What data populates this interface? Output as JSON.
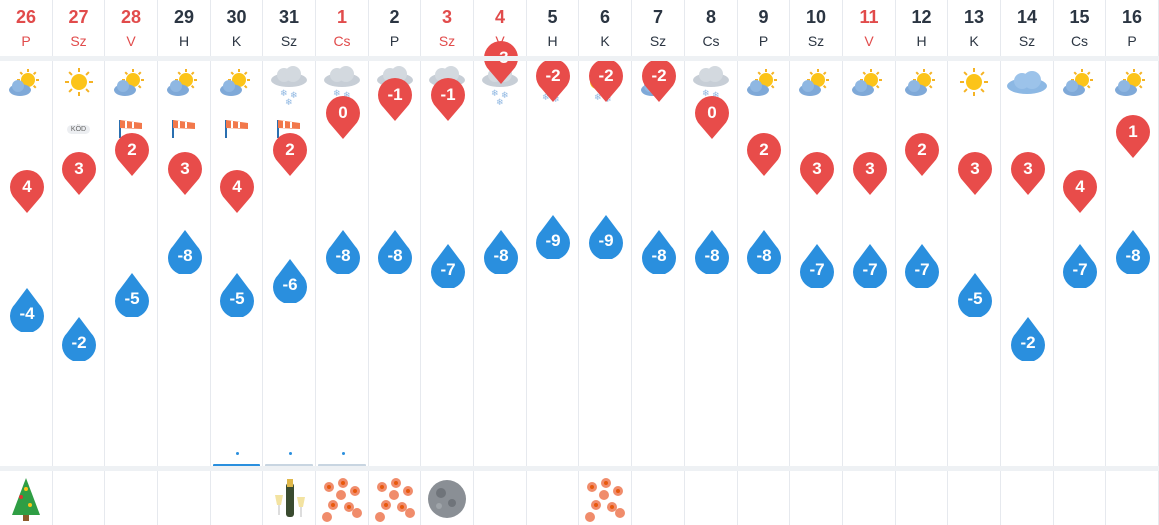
{
  "days": [
    {
      "num": "26",
      "name": "P",
      "red": true,
      "max": "4",
      "min": "-4",
      "icon": "sun-cloud",
      "extra": null,
      "precip": null,
      "event": "christmas-tree"
    },
    {
      "num": "27",
      "name": "Sz",
      "red": true,
      "max": "3",
      "min": "-2",
      "icon": "sun",
      "extra": "fog",
      "precip": null,
      "event": null
    },
    {
      "num": "28",
      "name": "V",
      "red": true,
      "max": "2",
      "min": "-5",
      "icon": "sun-cloud",
      "extra": "wind-sock",
      "precip": null,
      "event": null
    },
    {
      "num": "29",
      "name": "H",
      "red": false,
      "max": "3",
      "min": "-8",
      "icon": "sun-cloud",
      "extra": "wind-sock",
      "precip": null,
      "event": null
    },
    {
      "num": "30",
      "name": "K",
      "red": false,
      "max": "4",
      "min": "-5",
      "icon": "sun-cloud",
      "extra": "wind-sock",
      "precip": "bar",
      "event": null
    },
    {
      "num": "31",
      "name": "Sz",
      "red": false,
      "max": "2",
      "min": "-6",
      "icon": "cloud-snow",
      "extra": "wind-sock",
      "precip": "bar-light",
      "event": "champagne"
    },
    {
      "num": "1",
      "name": "Cs",
      "red": true,
      "max": "0",
      "min": "-8",
      "icon": "cloud-snow",
      "extra": null,
      "precip": "bar-light",
      "event": "flowers"
    },
    {
      "num": "2",
      "name": "P",
      "red": false,
      "max": "-1",
      "min": "-8",
      "icon": "cloud-snow",
      "extra": null,
      "precip": null,
      "event": "flowers"
    },
    {
      "num": "3",
      "name": "Sz",
      "red": true,
      "max": "-1",
      "min": "-7",
      "icon": "cloud-snow",
      "extra": null,
      "precip": null,
      "event": "moon"
    },
    {
      "num": "4",
      "name": "V",
      "red": true,
      "max": "-3",
      "min": "-8",
      "icon": "cloud-snow",
      "extra": null,
      "precip": null,
      "event": null
    },
    {
      "num": "5",
      "name": "H",
      "red": false,
      "max": "-2",
      "min": "-9",
      "icon": "sun-cloud-snow",
      "extra": null,
      "precip": null,
      "event": null
    },
    {
      "num": "6",
      "name": "K",
      "red": false,
      "max": "-2",
      "min": "-9",
      "icon": "sun-cloud-snow",
      "extra": null,
      "precip": null,
      "event": "flowers"
    },
    {
      "num": "7",
      "name": "Sz",
      "red": false,
      "max": "-2",
      "min": "-8",
      "icon": "sun-cloud",
      "extra": null,
      "precip": null,
      "event": null
    },
    {
      "num": "8",
      "name": "Cs",
      "red": false,
      "max": "0",
      "min": "-8",
      "icon": "cloud-snow",
      "extra": null,
      "precip": null,
      "event": null
    },
    {
      "num": "9",
      "name": "P",
      "red": false,
      "max": "2",
      "min": "-8",
      "icon": "sun-cloud",
      "extra": null,
      "precip": null,
      "event": null
    },
    {
      "num": "10",
      "name": "Sz",
      "red": false,
      "max": "3",
      "min": "-7",
      "icon": "sun-cloud",
      "extra": null,
      "precip": null,
      "event": null
    },
    {
      "num": "11",
      "name": "V",
      "red": true,
      "max": "3",
      "min": "-7",
      "icon": "sun-cloud",
      "extra": null,
      "precip": null,
      "event": null
    },
    {
      "num": "12",
      "name": "H",
      "red": false,
      "max": "2",
      "min": "-7",
      "icon": "sun-cloud",
      "extra": null,
      "precip": null,
      "event": null
    },
    {
      "num": "13",
      "name": "K",
      "red": false,
      "max": "3",
      "min": "-5",
      "icon": "sun",
      "extra": null,
      "precip": null,
      "event": null
    },
    {
      "num": "14",
      "name": "Sz",
      "red": false,
      "max": "3",
      "min": "-2",
      "icon": "cloud",
      "extra": null,
      "precip": null,
      "event": null
    },
    {
      "num": "15",
      "name": "Cs",
      "red": false,
      "max": "4",
      "min": "-7",
      "icon": "sun-cloud",
      "extra": null,
      "precip": null,
      "event": null
    },
    {
      "num": "16",
      "name": "P",
      "red": false,
      "max": "1",
      "min": "-8",
      "icon": "sun-cloud",
      "extra": null,
      "precip": null,
      "event": null
    }
  ],
  "fog_label": "KÖD",
  "colors": {
    "max": "#e84c4a",
    "min": "#2a8fde",
    "weekend": "#e14b4b",
    "text": "#2b3542"
  }
}
